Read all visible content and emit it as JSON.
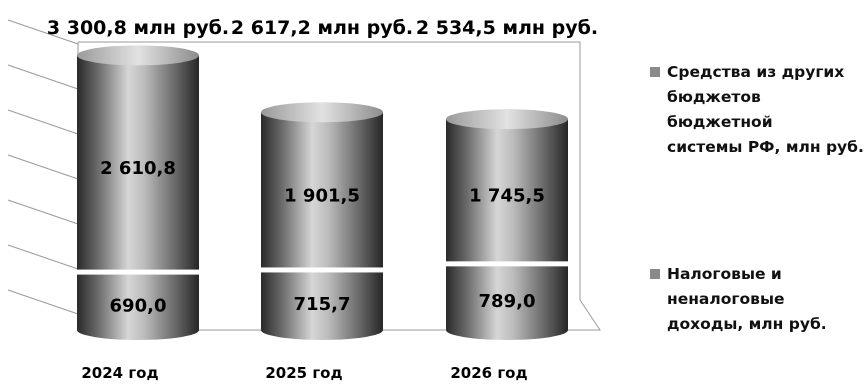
{
  "chart_data": {
    "type": "bar",
    "categories": [
      "2024 год",
      "2025 год",
      "2026 год"
    ],
    "totals": [
      "3 300,8 млн  руб.",
      "2 617,2 млн  руб.",
      "2 534,5 млн  руб."
    ],
    "series": [
      {
        "name": "Налоговые и неналоговые доходы, млн  руб.",
        "values": [
          690.0,
          715.7,
          789.0
        ],
        "labels": [
          "690,0",
          "715,7",
          "789,0"
        ]
      },
      {
        "name": "Средства из других бюджетов бюджетной системы РФ, млн  руб.",
        "values": [
          2610.8,
          1901.5,
          1745.5
        ],
        "labels": [
          "2 610,8",
          "1 901,5",
          "1 745,5"
        ]
      }
    ],
    "stacked": true,
    "legend_position": "right",
    "grid": false
  },
  "legend": [
    {
      "text": "Средства из других\nбюджетов бюджетной\nсистемы РФ, млн  руб.",
      "color": "#8a8a8a"
    },
    {
      "text": "Налоговые и\nненалоговые\nдоходы, млн  руб.",
      "color": "#8a8a8a"
    }
  ]
}
